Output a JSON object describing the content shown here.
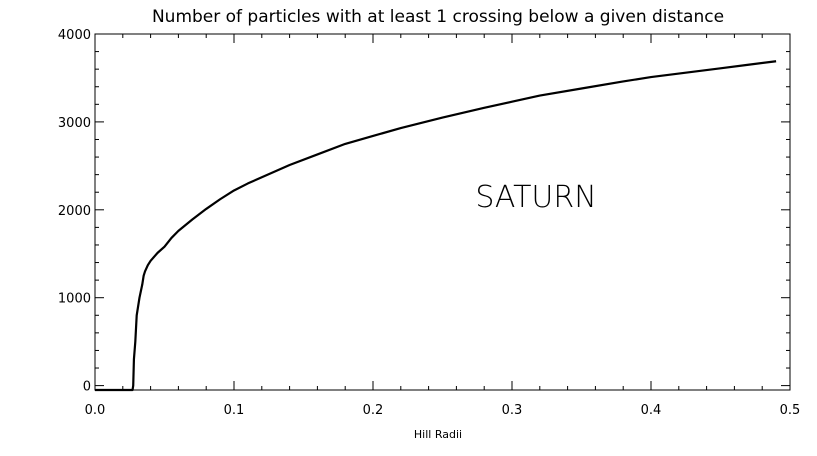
{
  "chart_data": {
    "type": "line",
    "title": "Number of particles with at least 1 crossing below a given distance",
    "xlabel": "Hill Radii",
    "ylabel": "",
    "xlim": [
      0.0,
      0.5
    ],
    "ylim": [
      -50,
      4000
    ],
    "x_ticks": [
      0.0,
      0.1,
      0.2,
      0.3,
      0.4,
      0.5
    ],
    "x_tick_labels": [
      "0.0",
      "0.1",
      "0.2",
      "0.3",
      "0.4",
      "0.5"
    ],
    "y_ticks": [
      0,
      1000,
      2000,
      3000,
      4000
    ],
    "y_tick_labels": [
      "0",
      "1000",
      "2000",
      "3000",
      "4000"
    ],
    "grid": false,
    "annotation": "SATURN",
    "series": [
      {
        "x": [
          0.0,
          0.027,
          0.0275,
          0.028,
          0.029,
          0.03,
          0.032,
          0.034,
          0.035,
          0.036,
          0.038,
          0.04,
          0.045,
          0.05,
          0.055,
          0.06,
          0.07,
          0.08,
          0.09,
          0.1,
          0.11,
          0.12,
          0.14,
          0.16,
          0.18,
          0.2,
          0.22,
          0.25,
          0.28,
          0.3,
          0.32,
          0.35,
          0.38,
          0.4,
          0.42,
          0.45,
          0.47,
          0.49
        ],
        "y": [
          -50,
          -50,
          0,
          300,
          500,
          800,
          1000,
          1150,
          1250,
          1300,
          1370,
          1420,
          1510,
          1580,
          1680,
          1760,
          1890,
          2010,
          2120,
          2220,
          2300,
          2370,
          2510,
          2630,
          2750,
          2840,
          2930,
          3050,
          3160,
          3230,
          3300,
          3380,
          3460,
          3510,
          3550,
          3610,
          3650,
          3690
        ]
      }
    ]
  }
}
